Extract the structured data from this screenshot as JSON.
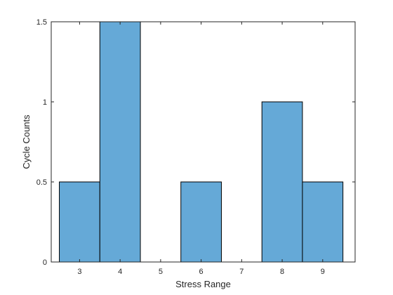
{
  "chart_data": {
    "type": "bar",
    "title": "",
    "xlabel": "Stress Range",
    "ylabel": "Cycle Counts",
    "bin_width": 1,
    "categories": [
      3,
      4,
      5,
      6,
      7,
      8,
      9
    ],
    "values": [
      0.5,
      1.5,
      0,
      0.5,
      0,
      1,
      0.5
    ],
    "xlim": [
      2.3,
      9.8
    ],
    "ylim": [
      0,
      1.5
    ],
    "xticks": [
      "3",
      "4",
      "5",
      "6",
      "7",
      "8",
      "9"
    ],
    "yticks": [
      "0",
      "0.5",
      "1",
      "1.5"
    ],
    "ytick_values": [
      0,
      0.5,
      1,
      1.5
    ],
    "grid": false,
    "bar_color": "#65a9d7",
    "edge_color": "#000000"
  }
}
